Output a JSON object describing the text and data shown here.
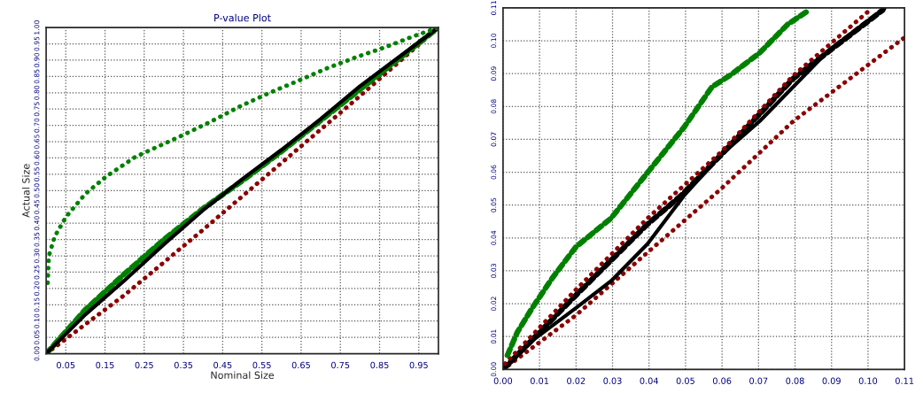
{
  "chart_data": [
    {
      "type": "line",
      "title": "P-value Plot",
      "xlabel": "Nominal Size",
      "ylabel": "Actual Size",
      "xlim": [
        0,
        1
      ],
      "ylim": [
        0,
        1
      ],
      "xticks": [
        0.05,
        0.15,
        0.25,
        0.35,
        0.45,
        0.55,
        0.65,
        0.75,
        0.85,
        0.95
      ],
      "yticks": [
        {
          "value": 0,
          "label": "0.00"
        },
        0.05,
        {
          "value": 0.1,
          "label": "0.10"
        },
        0.15,
        {
          "value": 0.2,
          "label": "0.20"
        },
        0.25,
        {
          "value": 0.3,
          "label": "0.30"
        },
        0.35,
        {
          "value": 0.4,
          "label": "0.40"
        },
        0.45,
        {
          "value": 0.5,
          "label": "0.50"
        },
        0.55,
        {
          "value": 0.6,
          "label": "0.60"
        },
        0.65,
        {
          "value": 0.7,
          "label": "0.70"
        },
        0.75,
        {
          "value": 0.8,
          "label": "0.80"
        },
        0.85,
        {
          "value": 0.9,
          "label": "0.90"
        },
        0.95,
        {
          "value": 1,
          "label": "1.00"
        }
      ],
      "grid": true,
      "legend": false,
      "series": [
        {
          "color": "#8b0000",
          "line_style": "dotted",
          "x": [
            0,
            0.2,
            0.4,
            0.6,
            0.8,
            1
          ],
          "values": [
            0,
            0.18,
            0.38,
            0.585,
            0.79,
            1
          ]
        },
        {
          "color": "#008000",
          "line_style": "dashed",
          "x": [
            0,
            0.1,
            0.2,
            0.3,
            0.4,
            0.5,
            0.6,
            0.7,
            0.8,
            0.9,
            1
          ],
          "values": [
            0,
            0.135,
            0.245,
            0.35,
            0.445,
            0.53,
            0.62,
            0.715,
            0.81,
            0.905,
            1
          ]
        },
        {
          "color": "#000000",
          "line_style": "solid",
          "x": [
            0,
            0.1,
            0.2,
            0.3,
            0.4,
            0.5,
            0.6,
            0.7,
            0.8,
            0.9,
            1
          ],
          "values": [
            0,
            0.12,
            0.225,
            0.335,
            0.44,
            0.535,
            0.625,
            0.72,
            0.82,
            0.91,
            1
          ]
        },
        {
          "color": "#008000",
          "line_style": "dotted",
          "x": [
            0.004,
            0.007,
            0.022,
            0.051,
            0.1,
            0.154,
            0.227,
            0.35,
            0.424,
            0.497,
            0.57,
            0.643,
            0.716,
            0.79,
            0.863,
            0.936,
            1
          ],
          "values": [
            0.217,
            0.3,
            0.36,
            0.42,
            0.49,
            0.544,
            0.603,
            0.671,
            0.714,
            0.76,
            0.8,
            0.837,
            0.875,
            0.909,
            0.939,
            0.973,
            1
          ]
        }
      ]
    },
    {
      "type": "line",
      "xlim": [
        0,
        0.11
      ],
      "ylim": [
        0,
        0.11
      ],
      "xticks": [
        {
          "value": 0,
          "label": "0.00"
        },
        0.01,
        0.02,
        0.03,
        0.04,
        0.05,
        0.06,
        0.07,
        0.08,
        0.09,
        {
          "value": 0.1,
          "label": "0.10"
        },
        0.11
      ],
      "yticks": [
        {
          "value": 0,
          "label": "0.00"
        },
        0.01,
        0.02,
        0.03,
        0.04,
        0.05,
        0.06,
        0.07,
        0.08,
        0.09,
        {
          "value": 0.1,
          "label": "0.10"
        },
        0.11
      ],
      "grid": true,
      "legend": false,
      "series": [
        {
          "color": "#8b0000",
          "line_style": "dotted",
          "x": [
            0,
            0.02,
            0.0396,
            0.0595,
            0.0795,
            0.11
          ],
          "values": [
            0,
            0.0165,
            0.0356,
            0.0547,
            0.0755,
            0.101
          ]
        },
        {
          "color": "#000000",
          "line_style": "solid",
          "x": [
            0,
            0.0089,
            0.02,
            0.0296,
            0.0396,
            0.0496,
            0.0595,
            0.0703,
            0.0894,
            0.1045
          ],
          "values": [
            0,
            0.0095,
            0.0187,
            0.0269,
            0.0382,
            0.0529,
            0.065,
            0.0755,
            0.0972,
            0.1098
          ]
        },
        {
          "color": "#000000",
          "line_style": "dashed",
          "x": [
            0,
            0.02,
            0.0396,
            0.0488,
            0.0595,
            0.0795,
            0.104
          ],
          "values": [
            0,
            0.0226,
            0.0442,
            0.0529,
            0.065,
            0.0885,
            0.1093
          ]
        },
        {
          "color": "#8b0000",
          "line_style": "dotted",
          "x": [
            0.0005,
            0.02,
            0.0396,
            0.0595,
            0.0795,
            0.101
          ],
          "values": [
            0.0017,
            0.0243,
            0.046,
            0.0659,
            0.0894,
            0.1098
          ]
        },
        {
          "color": "#008000",
          "line_style": "dashed",
          "x": [
            0.0012,
            0.0039,
            0.008,
            0.0135,
            0.02,
            0.0296,
            0.0396,
            0.0496,
            0.0572,
            0.0626,
            0.0703,
            0.078,
            0.0833
          ],
          "values": [
            0.0043,
            0.0113,
            0.0187,
            0.0278,
            0.0373,
            0.046,
            0.0599,
            0.0737,
            0.0859,
            0.0898,
            0.0963,
            0.105,
            0.1089
          ]
        }
      ]
    }
  ]
}
